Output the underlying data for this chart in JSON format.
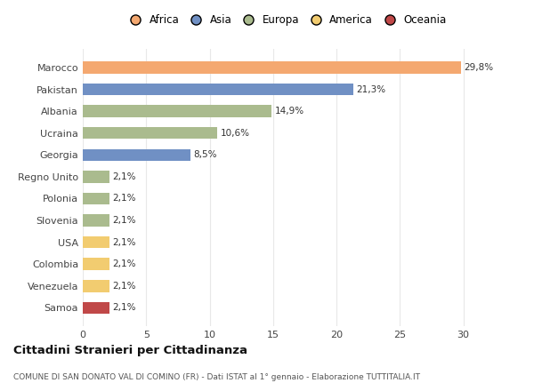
{
  "categories": [
    "Marocco",
    "Pakistan",
    "Albania",
    "Ucraina",
    "Georgia",
    "Regno Unito",
    "Polonia",
    "Slovenia",
    "USA",
    "Colombia",
    "Venezuela",
    "Samoa"
  ],
  "values": [
    29.8,
    21.3,
    14.9,
    10.6,
    8.5,
    2.1,
    2.1,
    2.1,
    2.1,
    2.1,
    2.1,
    2.1
  ],
  "labels": [
    "29,8%",
    "21,3%",
    "14,9%",
    "10,6%",
    "8,5%",
    "2,1%",
    "2,1%",
    "2,1%",
    "2,1%",
    "2,1%",
    "2,1%",
    "2,1%"
  ],
  "colors": [
    "#F4A870",
    "#7090C4",
    "#AABB8E",
    "#AABB8E",
    "#7090C4",
    "#AABB8E",
    "#AABB8E",
    "#AABB8E",
    "#F2CC70",
    "#F2CC70",
    "#F2CC70",
    "#C04848"
  ],
  "legend_labels": [
    "Africa",
    "Asia",
    "Europa",
    "America",
    "Oceania"
  ],
  "legend_colors": [
    "#F4A870",
    "#7090C4",
    "#AABB8E",
    "#F2CC70",
    "#C04848"
  ],
  "title": "Cittadini Stranieri per Cittadinanza",
  "subtitle": "COMUNE DI SAN DONATO VAL DI COMINO (FR) - Dati ISTAT al 1° gennaio - Elaborazione TUTTITALIA.IT",
  "xlim": [
    0,
    32
  ],
  "xticks": [
    0,
    5,
    10,
    15,
    20,
    25,
    30
  ],
  "bg_color": "#FFFFFF",
  "grid_color": "#E8E8E8"
}
